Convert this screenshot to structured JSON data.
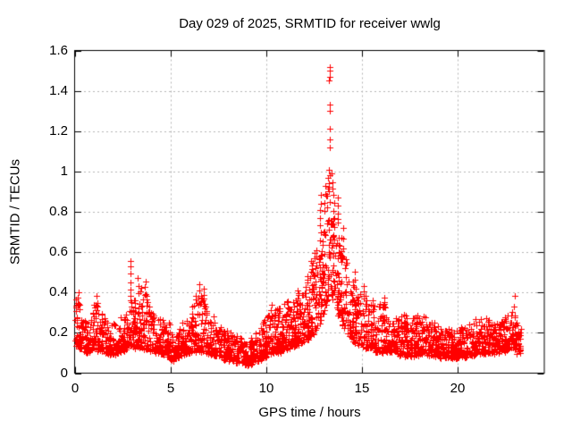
{
  "chart_data": {
    "type": "scatter",
    "title": "Day 029 of 2025, SRMTID for receiver wwlg",
    "xlabel": "GPS time / hours",
    "ylabel": "SRMTID / TECUs",
    "xlim": [
      0,
      24.5
    ],
    "ylim": [
      0,
      1.6
    ],
    "xticks": [
      "0",
      "5",
      "10",
      "15",
      "20"
    ],
    "yticks": [
      "0",
      "0.2",
      "0.4",
      "0.6",
      "0.8",
      "1",
      "1.2",
      "1.4",
      "1.6"
    ],
    "grid": true,
    "legend": false,
    "marker": "plus",
    "marker_color": "#ff0000",
    "grid_color": "#b4b4b4",
    "border_color": "#000000",
    "points_per_hour": 115,
    "envelope": [
      [
        0.0,
        0.13,
        0.38,
        1.2
      ],
      [
        0.3,
        0.12,
        0.33,
        1.1
      ],
      [
        0.6,
        0.1,
        0.24,
        1.0
      ],
      [
        1.0,
        0.12,
        0.36,
        1.1
      ],
      [
        1.4,
        0.11,
        0.3,
        1.0
      ],
      [
        1.8,
        0.09,
        0.24,
        0.9
      ],
      [
        2.3,
        0.1,
        0.26,
        0.9
      ],
      [
        2.7,
        0.12,
        0.32,
        1.0
      ],
      [
        2.9,
        0.14,
        0.42,
        1.0
      ],
      [
        3.1,
        0.13,
        0.36,
        1.1
      ],
      [
        3.4,
        0.13,
        0.44,
        1.1
      ],
      [
        3.7,
        0.12,
        0.4,
        1.1
      ],
      [
        4.0,
        0.11,
        0.32,
        1.0
      ],
      [
        4.3,
        0.1,
        0.26,
        0.9
      ],
      [
        4.7,
        0.09,
        0.3,
        0.9
      ],
      [
        5.1,
        0.06,
        0.2,
        0.9
      ],
      [
        5.5,
        0.08,
        0.24,
        0.9
      ],
      [
        5.9,
        0.1,
        0.29,
        1.0
      ],
      [
        6.3,
        0.11,
        0.38,
        1.0
      ],
      [
        6.6,
        0.11,
        0.4,
        1.0
      ],
      [
        7.0,
        0.1,
        0.32,
        1.0
      ],
      [
        7.4,
        0.08,
        0.25,
        0.9
      ],
      [
        7.8,
        0.07,
        0.22,
        0.9
      ],
      [
        8.2,
        0.06,
        0.2,
        1.0
      ],
      [
        8.6,
        0.05,
        0.18,
        1.0
      ],
      [
        9.1,
        0.04,
        0.17,
        1.0
      ],
      [
        9.5,
        0.06,
        0.21,
        1.0
      ],
      [
        9.9,
        0.08,
        0.27,
        1.0
      ],
      [
        10.3,
        0.1,
        0.31,
        1.1
      ],
      [
        10.7,
        0.1,
        0.33,
        1.1
      ],
      [
        11.1,
        0.12,
        0.35,
        1.2
      ],
      [
        11.5,
        0.14,
        0.37,
        1.2
      ],
      [
        11.9,
        0.15,
        0.43,
        1.2
      ],
      [
        12.3,
        0.18,
        0.52,
        1.2
      ],
      [
        12.7,
        0.22,
        0.65,
        1.25
      ],
      [
        13.0,
        0.3,
        0.85,
        1.25
      ],
      [
        13.3,
        0.4,
        0.95,
        1.3
      ],
      [
        13.6,
        0.33,
        0.85,
        1.2
      ],
      [
        13.9,
        0.26,
        0.68,
        1.15
      ],
      [
        14.2,
        0.2,
        0.55,
        1.1
      ],
      [
        14.6,
        0.15,
        0.45,
        1.05
      ],
      [
        15.0,
        0.13,
        0.4,
        1.0
      ],
      [
        15.4,
        0.12,
        0.37,
        1.0
      ],
      [
        15.8,
        0.1,
        0.34,
        1.0
      ],
      [
        16.2,
        0.11,
        0.35,
        1.0
      ],
      [
        16.6,
        0.1,
        0.3,
        1.0
      ],
      [
        17.1,
        0.09,
        0.3,
        1.0
      ],
      [
        17.6,
        0.08,
        0.27,
        1.0
      ],
      [
        18.1,
        0.1,
        0.29,
        1.0
      ],
      [
        18.6,
        0.08,
        0.26,
        1.0
      ],
      [
        19.1,
        0.08,
        0.24,
        1.0
      ],
      [
        19.6,
        0.07,
        0.22,
        1.0
      ],
      [
        20.1,
        0.08,
        0.22,
        1.0
      ],
      [
        20.6,
        0.08,
        0.25,
        1.0
      ],
      [
        21.1,
        0.1,
        0.28,
        1.0
      ],
      [
        21.6,
        0.1,
        0.27,
        1.0
      ],
      [
        22.0,
        0.1,
        0.25,
        1.0
      ],
      [
        22.5,
        0.11,
        0.28,
        1.05
      ],
      [
        22.9,
        0.12,
        0.3,
        1.1
      ],
      [
        23.1,
        0.1,
        0.27,
        1.0
      ],
      [
        23.3,
        0.1,
        0.22,
        1.0
      ]
    ],
    "spikes": [
      [
        0.15,
        0.4
      ],
      [
        1.15,
        0.38
      ],
      [
        2.87,
        0.56
      ],
      [
        3.3,
        0.47
      ],
      [
        3.65,
        0.46
      ],
      [
        6.45,
        0.44
      ],
      [
        6.7,
        0.42
      ],
      [
        10.25,
        0.34
      ],
      [
        11.65,
        0.41
      ],
      [
        12.35,
        0.56
      ],
      [
        12.8,
        0.88
      ],
      [
        13.05,
        0.93
      ],
      [
        13.25,
        0.97
      ],
      [
        13.45,
        0.99
      ],
      [
        13.75,
        0.87
      ],
      [
        14.0,
        0.72
      ],
      [
        14.65,
        0.5
      ],
      [
        15.1,
        0.43
      ],
      [
        16.15,
        0.37
      ],
      [
        22.95,
        0.38
      ]
    ],
    "outlier_points": [
      [
        13.29,
        1.52
      ],
      [
        13.33,
        1.5
      ],
      [
        13.31,
        1.47
      ],
      [
        13.27,
        1.45
      ],
      [
        13.3,
        1.33
      ],
      [
        13.33,
        1.3
      ],
      [
        13.29,
        1.21
      ],
      [
        13.32,
        1.16
      ],
      [
        13.31,
        1.12
      ],
      [
        13.28,
        1.01
      ],
      [
        13.3,
        0.98
      ]
    ]
  }
}
